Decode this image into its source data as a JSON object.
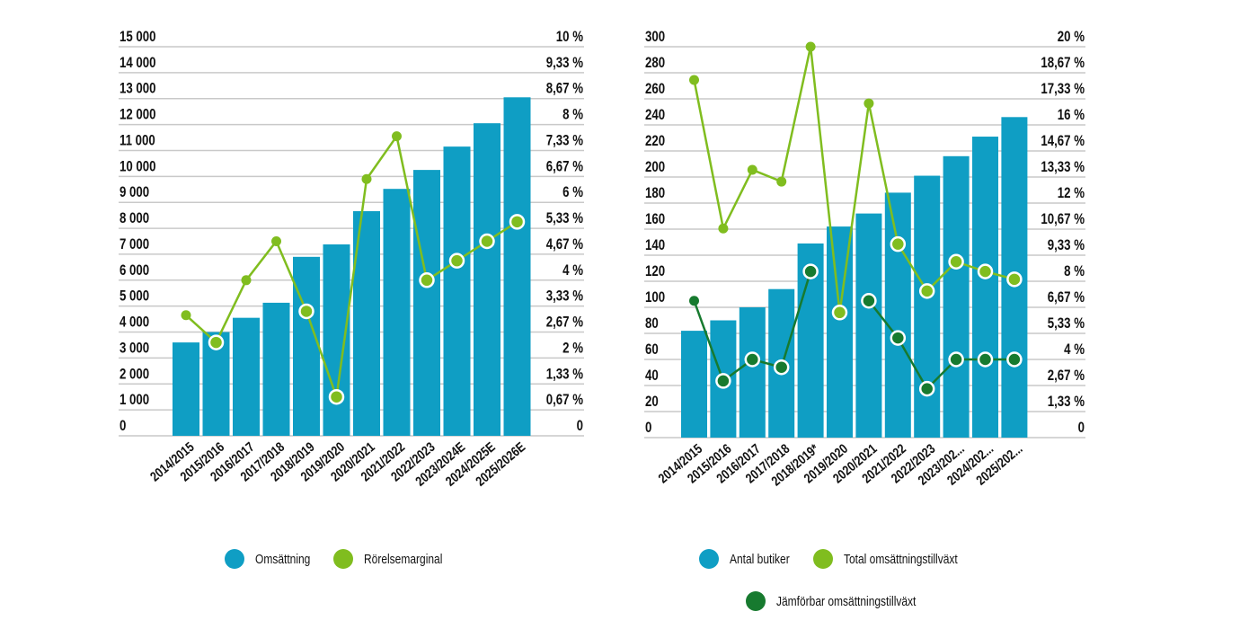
{
  "colors": {
    "bar": "#0f9ec4",
    "line_total": "#80bd1f",
    "line_comparable": "#177a2f",
    "grid": "#c9c9c9",
    "text": "#111111"
  },
  "chart_data": [
    {
      "type": "bar",
      "title": "",
      "xlabel": "",
      "ylabel": "",
      "categories": [
        "2014/2015",
        "2015/2016",
        "2016/2017",
        "2017/2018",
        "2018/2019",
        "2019/2020",
        "2020/2021",
        "2021/2022",
        "2022/2023",
        "2023/2024E",
        "2024/2025E",
        "2025/2026E"
      ],
      "left_axis": {
        "ylim": [
          0,
          15000
        ],
        "ticks": [
          "0",
          "1 000",
          "2 000",
          "3 000",
          "4 000",
          "5 000",
          "6 000",
          "7 000",
          "8 000",
          "9 000",
          "10 000",
          "11 000",
          "12 000",
          "13 000",
          "14 000",
          "15 000"
        ]
      },
      "right_axis": {
        "ylim": [
          0,
          10
        ],
        "ticks": [
          "0",
          "0,67 %",
          "1,33 %",
          "2 %",
          "2,67 %",
          "3,33 %",
          "4 %",
          "4,67 %",
          "5,33 %",
          "6 %",
          "6,67 %",
          "7,33 %",
          "8 %",
          "8,67 %",
          "9,33 %",
          "10 %"
        ]
      },
      "grid": true,
      "series": [
        {
          "name": "Omsättning",
          "kind": "bar",
          "axis": "left",
          "color_key": "bar",
          "values": [
            3600,
            4000,
            4550,
            5130,
            6900,
            7380,
            8660,
            9520,
            10250,
            11150,
            12050,
            13050
          ]
        },
        {
          "name": "Rörelsemarginal",
          "kind": "line",
          "axis": "right",
          "color_key": "line_total",
          "values": [
            3.1,
            2.4,
            4.0,
            5.0,
            3.2,
            1.0,
            6.6,
            7.7,
            4.0,
            4.5,
            5.0,
            5.5
          ],
          "ringed": [
            false,
            true,
            false,
            false,
            true,
            true,
            false,
            false,
            true,
            true,
            true,
            true
          ]
        }
      ],
      "legend": [
        {
          "label": "Omsättning",
          "color_key": "bar"
        },
        {
          "label": "Rörelsemarginal",
          "color_key": "line_total"
        }
      ],
      "legend_position": "bottom"
    },
    {
      "type": "bar",
      "title": "",
      "xlabel": "",
      "ylabel": "",
      "categories": [
        "2014/2015",
        "2015/2016",
        "2016/2017",
        "2017/2018",
        "2018/2019*",
        "2019/2020",
        "2020/2021",
        "2021/2022",
        "2022/2023",
        "2023/202...",
        "2024/202...",
        "2025/202..."
      ],
      "left_axis": {
        "ylim": [
          0,
          300
        ],
        "ticks": [
          "0",
          "20",
          "40",
          "60",
          "80",
          "100",
          "120",
          "140",
          "160",
          "180",
          "200",
          "220",
          "240",
          "260",
          "280",
          "300"
        ]
      },
      "right_axis": {
        "ylim": [
          0,
          20
        ],
        "ticks": [
          "0",
          "1,33 %",
          "2,67 %",
          "4 %",
          "5,33 %",
          "6,67 %",
          "8 %",
          "9,33 %",
          "10,67 %",
          "12 %",
          "13,33 %",
          "14,67 %",
          "16 %",
          "17,33 %",
          "18,67 %",
          "20 %"
        ]
      },
      "grid": true,
      "series": [
        {
          "name": "Antal butiker",
          "kind": "bar",
          "axis": "left",
          "color_key": "bar",
          "values": [
            82,
            90,
            100,
            114,
            149,
            162,
            172,
            188,
            201,
            216,
            231,
            246
          ]
        },
        {
          "name": "Total omsättningstillväxt",
          "kind": "line",
          "axis": "right",
          "color_key": "line_total",
          "values": [
            18.3,
            10.7,
            13.7,
            13.1,
            20.0,
            6.4,
            17.1,
            9.9,
            7.5,
            9.0,
            8.5,
            8.1
          ],
          "ringed": [
            false,
            false,
            false,
            false,
            false,
            true,
            false,
            true,
            true,
            true,
            true,
            true
          ]
        },
        {
          "name": "Jämförbar omsättningstillväxt",
          "kind": "line",
          "axis": "right",
          "color_key": "line_comparable",
          "values": [
            7.0,
            2.9,
            4.0,
            3.6,
            8.5,
            null,
            7.0,
            5.1,
            2.5,
            4.0,
            4.0,
            4.0
          ],
          "ringed": [
            false,
            true,
            true,
            true,
            true,
            false,
            true,
            true,
            true,
            true,
            true,
            true
          ]
        }
      ],
      "legend": [
        {
          "label": "Antal butiker",
          "color_key": "bar"
        },
        {
          "label": "Total omsättningstillväxt",
          "color_key": "line_total"
        },
        {
          "label": "Jämförbar omsättningstillväxt",
          "color_key": "line_comparable"
        }
      ],
      "legend_position": "bottom"
    }
  ]
}
